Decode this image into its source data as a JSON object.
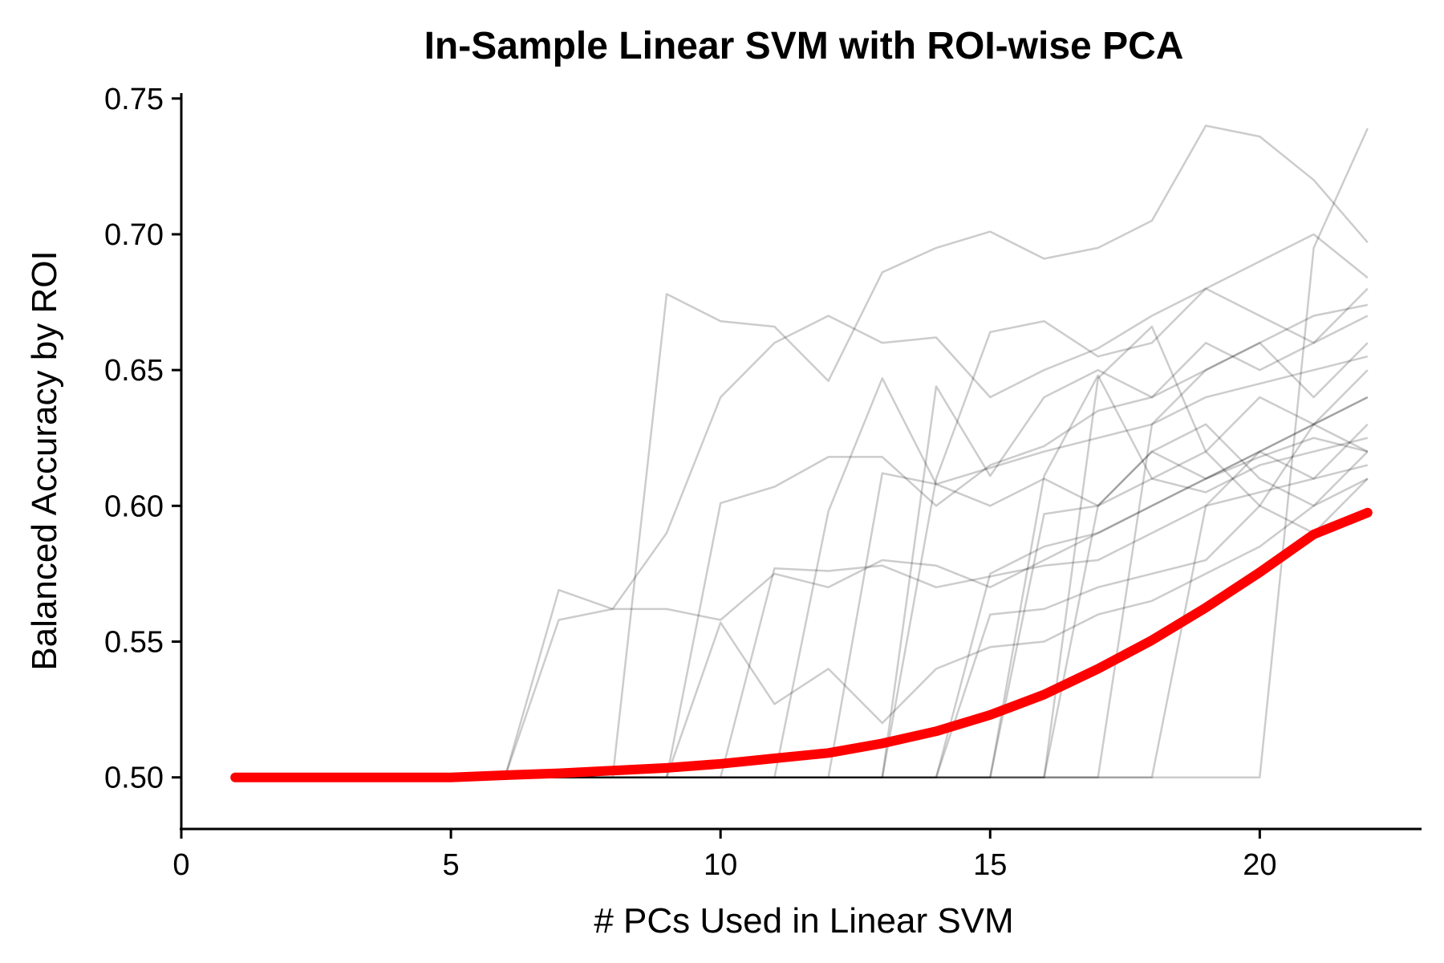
{
  "chart_data": {
    "type": "line",
    "title": "In-Sample Linear SVM with ROI-wise PCA",
    "xlabel": "# PCs Used in Linear SVM",
    "ylabel": "Balanced Accuracy by ROI",
    "xlim": [
      0,
      23
    ],
    "ylim": [
      0.481,
      0.752
    ],
    "xticks": [
      0,
      5,
      10,
      15,
      20
    ],
    "yticks": [
      0.5,
      0.55,
      0.6,
      0.65,
      0.7,
      0.75
    ],
    "ytick_labels": [
      "0.50",
      "0.55",
      "0.60",
      "0.65",
      "0.70",
      "0.75"
    ],
    "grid": false,
    "legend": "none",
    "colors": {
      "roi_lines": "#000000",
      "trend": "#ff0000"
    },
    "trend": {
      "name": "",
      "x": [
        1,
        2,
        3,
        4,
        5,
        6,
        7,
        8,
        9,
        10,
        11,
        12,
        13,
        14,
        15,
        16,
        17,
        18,
        19,
        20,
        21,
        22
      ],
      "values": [
        0.5,
        0.5,
        0.5,
        0.5,
        0.5,
        0.5008,
        0.5015,
        0.5025,
        0.5035,
        0.505,
        0.507,
        0.509,
        0.5125,
        0.517,
        0.523,
        0.5305,
        0.54,
        0.5505,
        0.5625,
        0.5755,
        0.5895,
        0.5975
      ]
    },
    "x_start": 1,
    "series": [
      {
        "values": [
          0.5,
          0.5,
          0.5,
          0.5,
          0.5,
          0.5,
          0.569,
          0.562,
          0.59,
          0.64,
          0.66,
          0.67,
          0.66,
          0.662,
          0.64,
          0.65,
          0.658,
          0.67,
          0.68,
          0.69,
          0.7,
          0.684
        ]
      },
      {
        "values": [
          0.5,
          0.5,
          0.5,
          0.5,
          0.5,
          0.5,
          0.5,
          0.5,
          0.678,
          0.668,
          0.666,
          0.646,
          0.686,
          0.695,
          0.701,
          0.691,
          0.695,
          0.705,
          0.74,
          0.736,
          0.72,
          0.697
        ]
      },
      {
        "values": [
          0.5,
          0.5,
          0.5,
          0.5,
          0.5,
          0.5,
          0.558,
          0.562,
          0.562,
          0.558,
          0.575,
          0.57,
          0.58,
          0.578,
          0.57,
          0.58,
          0.59,
          0.6,
          0.61,
          0.618,
          0.625,
          0.62
        ]
      },
      {
        "values": [
          0.5,
          0.5,
          0.5,
          0.5,
          0.5,
          0.5,
          0.5,
          0.5,
          0.5,
          0.601,
          0.607,
          0.618,
          0.618,
          0.6,
          0.615,
          0.622,
          0.635,
          0.64,
          0.65,
          0.66,
          0.67,
          0.674
        ]
      },
      {
        "values": [
          0.5,
          0.5,
          0.5,
          0.5,
          0.5,
          0.5,
          0.5,
          0.5,
          0.5,
          0.557,
          0.527,
          0.54,
          0.52,
          0.54,
          0.548,
          0.55,
          0.56,
          0.565,
          0.575,
          0.585,
          0.6,
          0.61
        ]
      },
      {
        "values": [
          0.5,
          0.5,
          0.5,
          0.5,
          0.5,
          0.5,
          0.5,
          0.5,
          0.5,
          0.5,
          0.577,
          0.576,
          0.578,
          0.57,
          0.574,
          0.578,
          0.58,
          0.59,
          0.6,
          0.605,
          0.61,
          0.615
        ]
      },
      {
        "values": [
          0.5,
          0.5,
          0.5,
          0.5,
          0.5,
          0.5,
          0.5,
          0.5,
          0.5,
          0.5,
          0.5,
          0.598,
          0.647,
          0.608,
          0.614,
          0.62,
          0.625,
          0.63,
          0.64,
          0.645,
          0.65,
          0.655
        ]
      },
      {
        "values": [
          0.5,
          0.5,
          0.5,
          0.5,
          0.5,
          0.5,
          0.5,
          0.5,
          0.5,
          0.5,
          0.5,
          0.5,
          0.612,
          0.608,
          0.6,
          0.61,
          0.6,
          0.62,
          0.61,
          0.62,
          0.63,
          0.62
        ]
      },
      {
        "values": [
          0.5,
          0.5,
          0.5,
          0.5,
          0.5,
          0.5,
          0.5,
          0.5,
          0.5,
          0.5,
          0.5,
          0.5,
          0.5,
          0.644,
          0.611,
          0.64,
          0.65,
          0.64,
          0.66,
          0.65,
          0.66,
          0.67
        ]
      },
      {
        "values": [
          0.5,
          0.5,
          0.5,
          0.5,
          0.5,
          0.5,
          0.5,
          0.5,
          0.5,
          0.5,
          0.5,
          0.5,
          0.5,
          0.61,
          0.664,
          0.668,
          0.655,
          0.66,
          0.68,
          0.67,
          0.66,
          0.68
        ]
      },
      {
        "values": [
          0.5,
          0.5,
          0.5,
          0.5,
          0.5,
          0.5,
          0.5,
          0.5,
          0.5,
          0.5,
          0.5,
          0.5,
          0.5,
          0.5,
          0.575,
          0.585,
          0.59,
          0.6,
          0.61,
          0.62,
          0.63,
          0.64
        ]
      },
      {
        "values": [
          0.5,
          0.5,
          0.5,
          0.5,
          0.5,
          0.5,
          0.5,
          0.5,
          0.5,
          0.5,
          0.5,
          0.5,
          0.5,
          0.5,
          0.56,
          0.562,
          0.57,
          0.575,
          0.58,
          0.6,
          0.59,
          0.61
        ]
      },
      {
        "values": [
          0.5,
          0.5,
          0.5,
          0.5,
          0.5,
          0.5,
          0.5,
          0.5,
          0.5,
          0.5,
          0.5,
          0.5,
          0.5,
          0.5,
          0.5,
          0.611,
          0.648,
          0.61,
          0.62,
          0.64,
          0.63,
          0.65
        ]
      },
      {
        "values": [
          0.5,
          0.5,
          0.5,
          0.5,
          0.5,
          0.5,
          0.5,
          0.5,
          0.5,
          0.5,
          0.5,
          0.5,
          0.5,
          0.5,
          0.5,
          0.597,
          0.6,
          0.61,
          0.605,
          0.615,
          0.62,
          0.625
        ]
      },
      {
        "values": [
          0.5,
          0.5,
          0.5,
          0.5,
          0.5,
          0.5,
          0.5,
          0.5,
          0.5,
          0.5,
          0.5,
          0.5,
          0.5,
          0.5,
          0.5,
          0.5,
          0.647,
          0.666,
          0.62,
          0.6,
          0.63,
          0.64
        ]
      },
      {
        "values": [
          0.5,
          0.5,
          0.5,
          0.5,
          0.5,
          0.5,
          0.5,
          0.5,
          0.5,
          0.5,
          0.5,
          0.5,
          0.5,
          0.5,
          0.5,
          0.5,
          0.6,
          0.62,
          0.63,
          0.61,
          0.6,
          0.62
        ]
      },
      {
        "values": [
          0.5,
          0.5,
          0.5,
          0.5,
          0.5,
          0.5,
          0.5,
          0.5,
          0.5,
          0.5,
          0.5,
          0.5,
          0.5,
          0.5,
          0.5,
          0.5,
          0.5,
          0.63,
          0.65,
          0.66,
          0.64,
          0.66
        ]
      },
      {
        "values": [
          0.5,
          0.5,
          0.5,
          0.5,
          0.5,
          0.5,
          0.5,
          0.5,
          0.5,
          0.5,
          0.5,
          0.5,
          0.5,
          0.5,
          0.5,
          0.5,
          0.5,
          0.5,
          0.6,
          0.62,
          0.61,
          0.63
        ]
      },
      {
        "values": [
          0.5,
          0.5,
          0.5,
          0.5,
          0.5,
          0.5,
          0.5,
          0.5,
          0.5,
          0.5,
          0.5,
          0.5,
          0.5,
          0.5,
          0.5,
          0.5,
          0.5,
          0.5,
          0.5,
          0.5,
          0.695,
          0.739
        ]
      }
    ]
  }
}
